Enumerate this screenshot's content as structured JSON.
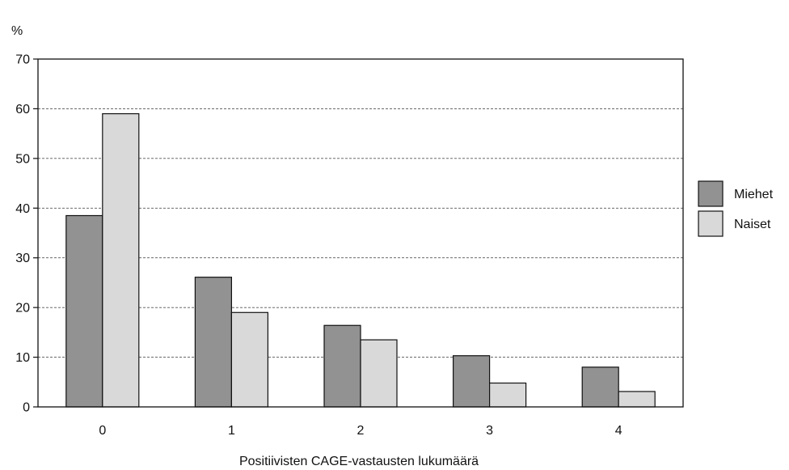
{
  "chart_data": {
    "type": "bar",
    "title": "",
    "ylabel": "%",
    "xlabel": "Positiivisten CAGE-vastausten lukumäärä",
    "categories": [
      "0",
      "1",
      "2",
      "3",
      "4"
    ],
    "series": [
      {
        "name": "Miehet",
        "values": [
          38.5,
          26.1,
          16.4,
          10.3,
          8.0
        ],
        "color": "#929292"
      },
      {
        "name": "Naiset",
        "values": [
          59.0,
          19.0,
          13.5,
          4.8,
          3.1
        ],
        "color": "#d9d9d9"
      }
    ],
    "ylim": [
      0,
      70
    ],
    "yticks": [
      0,
      10,
      20,
      30,
      40,
      50,
      60,
      70
    ],
    "grid": "horizontal dashed",
    "legend": "right"
  }
}
